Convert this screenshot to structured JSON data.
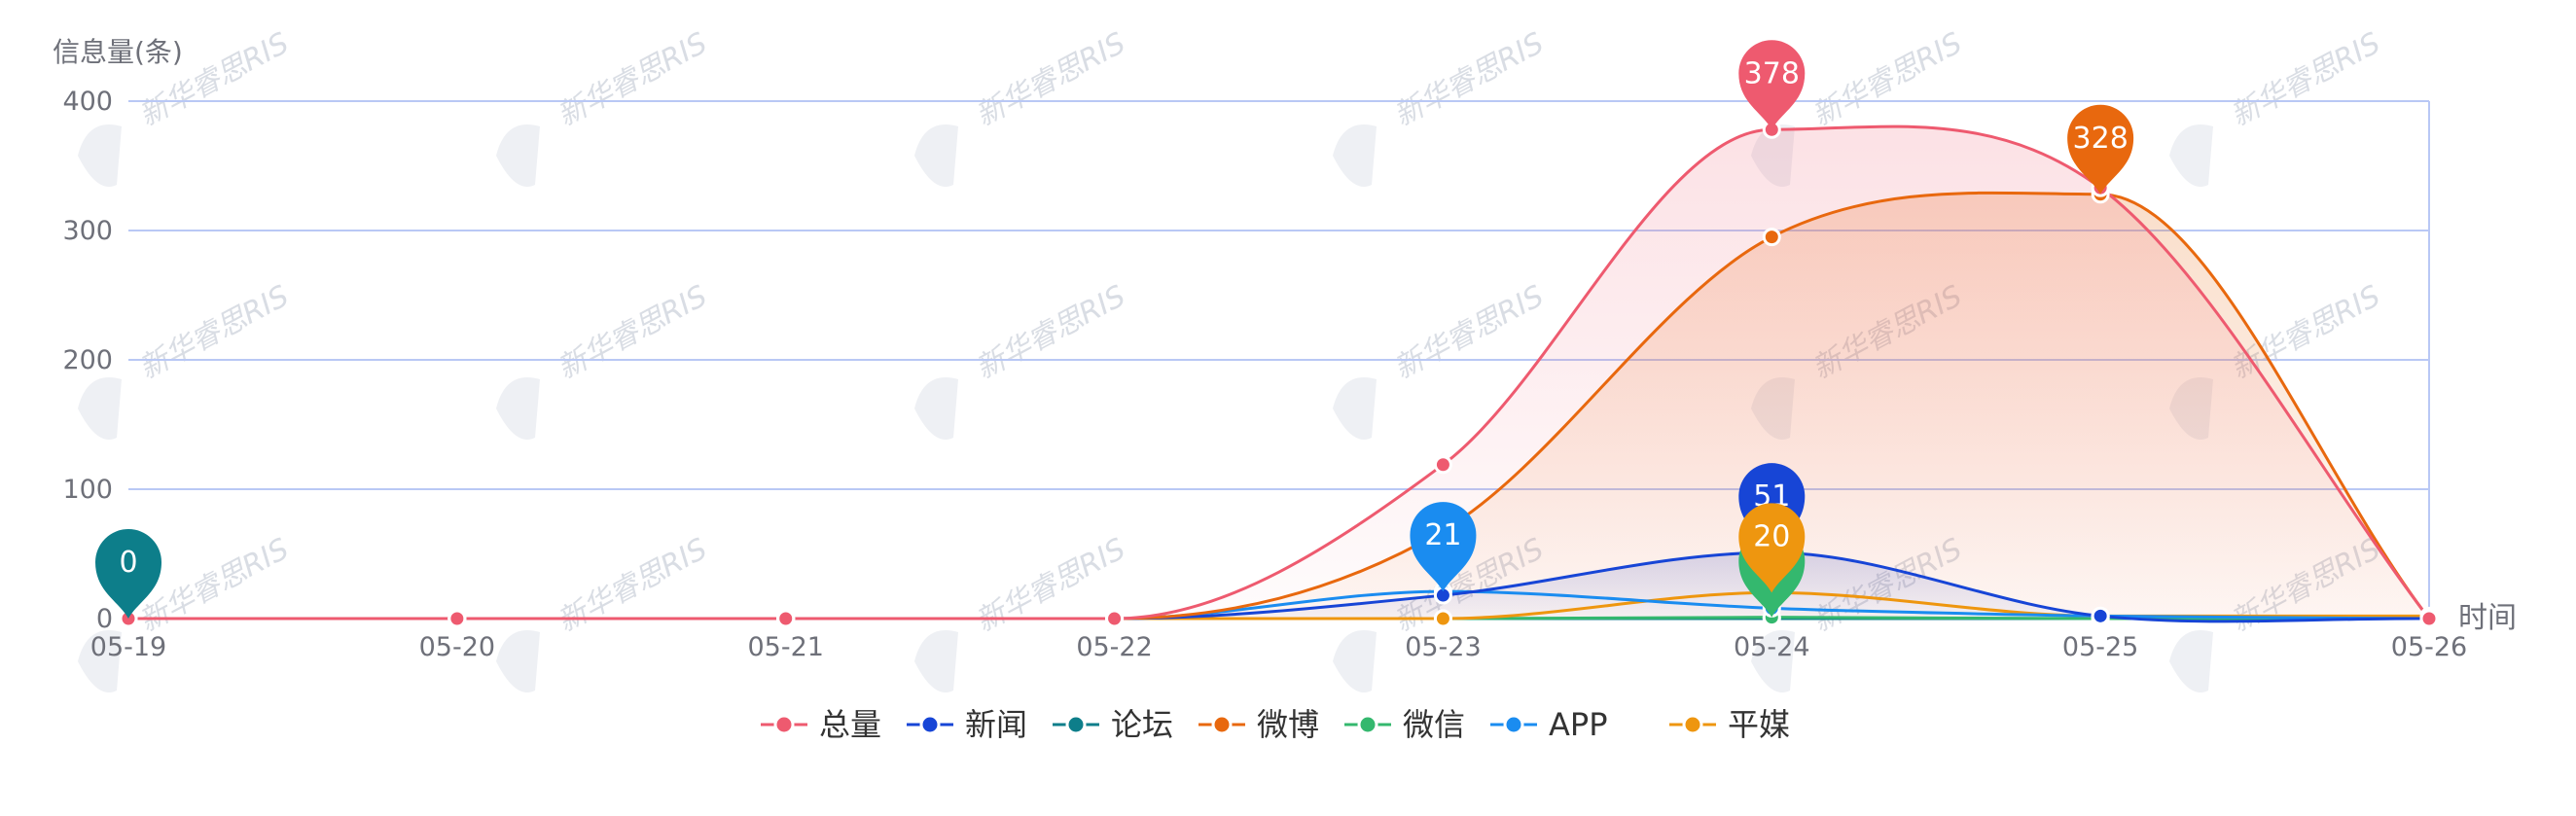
{
  "watermark_text": "新华睿思RIS",
  "chart_data": {
    "type": "line",
    "ylabel": "信息量(条)",
    "xlabel": "时间",
    "categories": [
      "05-19",
      "05-20",
      "05-21",
      "05-22",
      "05-23",
      "05-24",
      "05-25",
      "05-26"
    ],
    "yticks": [
      0,
      100,
      200,
      300,
      400
    ],
    "ylim": [
      0,
      400
    ],
    "grid": true,
    "legend_position": "bottom",
    "series": [
      {
        "name": "总量",
        "color": "#ee5a6f",
        "values": [
          0,
          0,
          0,
          0,
          119,
          378,
          333,
          0
        ],
        "area": true,
        "max_label": "378",
        "max_index": 5
      },
      {
        "name": "新闻",
        "color": "#1745d6",
        "values": [
          0,
          0,
          0,
          0,
          18,
          51,
          2,
          0
        ],
        "area": true,
        "max_label": "51",
        "max_index": 5
      },
      {
        "name": "论坛",
        "color": "#0d7e8a",
        "values": [
          0,
          0,
          0,
          0,
          0,
          0,
          0,
          0
        ],
        "area": false,
        "max_label": "0",
        "max_index": 0
      },
      {
        "name": "微博",
        "color": "#e8680e",
        "values": [
          0,
          0,
          0,
          0,
          68,
          295,
          328,
          0
        ],
        "area": true,
        "max_label": "328",
        "max_index": 6
      },
      {
        "name": "微信",
        "color": "#34b86e",
        "values": [
          0,
          0,
          0,
          0,
          0,
          1,
          0,
          0
        ],
        "area": false,
        "max_label": "",
        "max_index": 5
      },
      {
        "name": "APP",
        "color": "#1a8cf0",
        "values": [
          0,
          0,
          0,
          0,
          21,
          8,
          2,
          0
        ],
        "area": false,
        "max_label": "21",
        "max_index": 4
      },
      {
        "name": "平媒",
        "color": "#ee960f",
        "values": [
          0,
          0,
          0,
          0,
          0,
          20,
          2,
          2
        ],
        "area": false,
        "max_label": "20",
        "max_index": 5
      }
    ]
  }
}
